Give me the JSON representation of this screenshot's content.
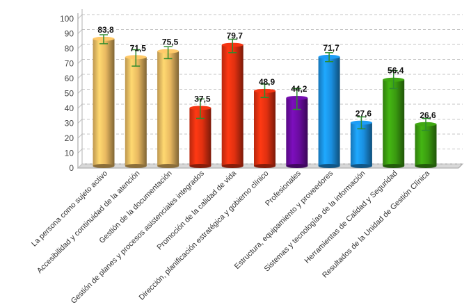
{
  "chart_data": {
    "type": "bar",
    "title": "",
    "xlabel": "",
    "ylabel": "",
    "ylim": [
      0,
      100
    ],
    "yticks": [
      0,
      10,
      20,
      30,
      40,
      50,
      60,
      70,
      80,
      90,
      100
    ],
    "grid": true,
    "legend": "none",
    "error_bars": true,
    "categories": [
      "La persona como sujeto activo",
      "Accesibilidad y continuidad de la atención",
      "Gestión de la documentación",
      "Gestión de planes y procesos asistenciales integrados",
      "Promoción de la calidad de vida",
      "Dirección, planificación estratégica y gobierno clínico",
      "Profesionales",
      "Estructura, equipamiento y proveedores",
      "Sistemas y tecnologías de la información",
      "Herramientas de Calidad y Seguridad",
      "Resultados de la Unidad de Gestión Clínica"
    ],
    "values": [
      83.8,
      71.5,
      75.5,
      37.5,
      79.7,
      48.9,
      44.2,
      71.7,
      27.6,
      56.4,
      26.6
    ],
    "value_labels": [
      "83,8",
      "71,5",
      "75,5",
      "37,5",
      "79,7",
      "48,9",
      "44,2",
      "71,7",
      "27,6",
      "56,4",
      "26,6"
    ],
    "error_low": [
      80.5,
      65.5,
      70.5,
      30.5,
      74.5,
      44.5,
      36.5,
      68.5,
      23.5,
      50.5,
      22.5
    ],
    "error_high": [
      86.5,
      76.5,
      78.5,
      43.5,
      83.5,
      53.5,
      50.5,
      74.5,
      31.5,
      62.5,
      30.5
    ],
    "colors": [
      "#e8b860",
      "#e8b860",
      "#e8b860",
      "#e03010",
      "#e03010",
      "#e03010",
      "#6a0ca0",
      "#1a8fe0",
      "#1a8fe0",
      "#3a9a10",
      "#3a9a10"
    ],
    "error_bar_color": "#2e8b2e"
  }
}
